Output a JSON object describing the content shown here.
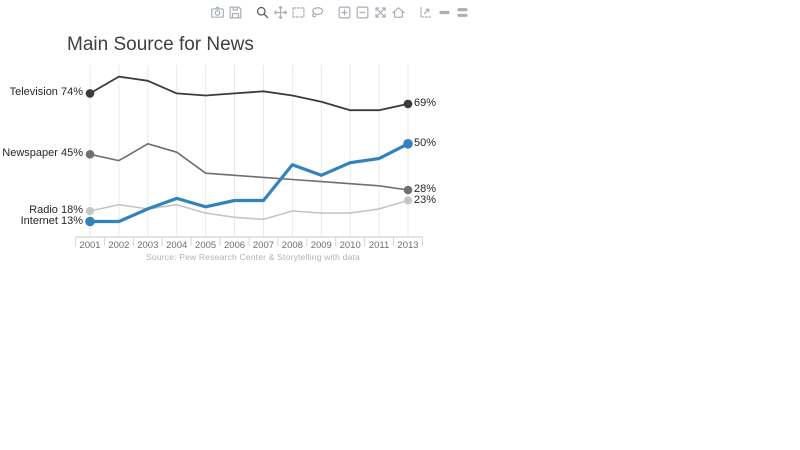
{
  "modebar": {
    "active_icon": "zoom-icon",
    "groups": [
      [
        "camera-icon",
        "save-icon"
      ],
      [
        "zoom-icon",
        "pan-icon",
        "box-select-icon",
        "lasso-select-icon"
      ],
      [
        "zoom-in-icon",
        "zoom-out-icon",
        "autoscale-icon",
        "reset-axes-icon"
      ],
      [
        "spikelines-icon",
        "hover-closest-icon",
        "hover-compare-icon"
      ],
      [
        "plotly-logo-icon"
      ]
    ]
  },
  "chart_data": {
    "type": "line",
    "title": "Main Source for News",
    "source": "Source: Pew Research Center & Storytelling with data",
    "xlabel": "",
    "ylabel": "",
    "ylim": [
      10,
      86
    ],
    "grid": "vertical-only",
    "legend": "direct-labels",
    "categories": [
      "2001",
      "2002",
      "2003",
      "2004",
      "2005",
      "2006",
      "2007",
      "2008",
      "2009",
      "2010",
      "2011",
      "2013"
    ],
    "series": [
      {
        "name": "Television",
        "color": "#3b3b3b",
        "line_width": 1.8,
        "dot_r": 4.3,
        "left_label": "Television 74%",
        "right_label": "69%",
        "values": [
          74,
          82,
          80,
          74,
          73,
          74,
          75,
          73,
          70,
          66,
          66,
          69
        ]
      },
      {
        "name": "Newspaper",
        "color": "#6f6f6f",
        "line_width": 1.6,
        "dot_r": 4.3,
        "left_label": "Newspaper 45%",
        "right_label": "28%",
        "values": [
          45,
          42,
          50,
          46,
          36,
          35,
          34,
          33,
          32,
          31,
          30,
          28
        ]
      },
      {
        "name": "Radio",
        "color": "#c5c5c5",
        "line_width": 1.6,
        "dot_r": 4.1,
        "left_label": "Radio 18%",
        "right_label": "23%",
        "values": [
          18,
          21,
          19,
          21,
          17,
          15,
          14,
          18,
          17,
          17,
          19,
          23
        ]
      },
      {
        "name": "Internet",
        "color": "#3182bd",
        "line_width": 3.2,
        "dot_r": 4.8,
        "left_label": "Internet 13%",
        "right_label": "50%",
        "values": [
          13,
          13,
          19,
          24,
          20,
          23,
          23,
          40,
          35,
          41,
          43,
          50
        ]
      }
    ]
  }
}
